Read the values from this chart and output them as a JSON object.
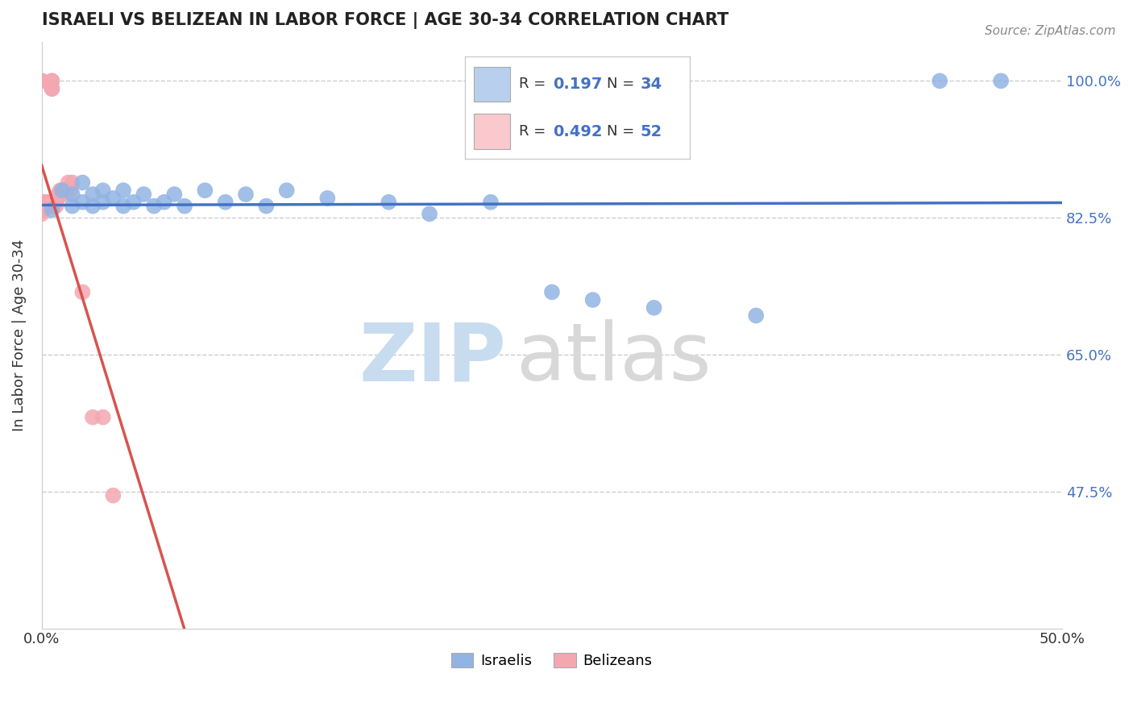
{
  "title": "ISRAELI VS BELIZEAN IN LABOR FORCE | AGE 30-34 CORRELATION CHART",
  "source": "Source: ZipAtlas.com",
  "ylabel": "In Labor Force | Age 30-34",
  "xlim": [
    0.0,
    0.5
  ],
  "ylim": [
    0.3,
    1.05
  ],
  "ytick_positions": [
    1.0,
    0.825,
    0.65,
    0.475
  ],
  "yticklabels": [
    "100.0%",
    "82.5%",
    "65.0%",
    "47.5%"
  ],
  "israeli_R": 0.197,
  "israeli_N": 34,
  "belizean_R": 0.492,
  "belizean_N": 52,
  "israeli_color": "#92b4e3",
  "belizean_color": "#f4a7b0",
  "israeli_line_color": "#4472c4",
  "belizean_line_color": "#d9534f",
  "legend_box_color_israeli": "#b8d0ee",
  "legend_box_color_belizean": "#f9c9ce",
  "israeli_x": [
    0.005,
    0.01,
    0.015,
    0.015,
    0.02,
    0.02,
    0.025,
    0.025,
    0.03,
    0.03,
    0.035,
    0.04,
    0.04,
    0.045,
    0.05,
    0.055,
    0.06,
    0.065,
    0.07,
    0.08,
    0.09,
    0.1,
    0.11,
    0.12,
    0.14,
    0.17,
    0.19,
    0.22,
    0.25,
    0.27,
    0.3,
    0.35,
    0.44,
    0.47
  ],
  "israeli_y": [
    0.835,
    0.86,
    0.84,
    0.855,
    0.845,
    0.87,
    0.84,
    0.855,
    0.845,
    0.86,
    0.85,
    0.84,
    0.86,
    0.845,
    0.855,
    0.84,
    0.845,
    0.855,
    0.84,
    0.86,
    0.845,
    0.855,
    0.84,
    0.86,
    0.85,
    0.845,
    0.83,
    0.845,
    0.73,
    0.72,
    0.71,
    0.7,
    1.0,
    1.0
  ],
  "belizean_x": [
    0.0,
    0.0,
    0.0,
    0.0,
    0.0,
    0.0,
    0.0,
    0.0,
    0.0,
    0.0,
    0.0,
    0.0,
    0.001,
    0.001,
    0.001,
    0.001,
    0.001,
    0.001,
    0.001,
    0.002,
    0.002,
    0.002,
    0.002,
    0.003,
    0.003,
    0.003,
    0.003,
    0.004,
    0.004,
    0.004,
    0.005,
    0.005,
    0.005,
    0.005,
    0.006,
    0.006,
    0.007,
    0.007,
    0.008,
    0.008,
    0.009,
    0.009,
    0.01,
    0.01,
    0.012,
    0.013,
    0.014,
    0.015,
    0.02,
    0.025,
    0.03,
    0.035
  ],
  "belizean_y": [
    0.84,
    0.835,
    0.84,
    0.845,
    0.835,
    0.84,
    0.83,
    0.84,
    0.845,
    0.835,
    1.0,
    1.0,
    0.845,
    0.84,
    0.835,
    0.84,
    0.84,
    0.845,
    0.835,
    0.84,
    0.845,
    0.84,
    0.84,
    0.845,
    0.84,
    0.84,
    0.845,
    0.84,
    0.845,
    0.84,
    0.99,
    0.99,
    1.0,
    1.0,
    0.845,
    0.84,
    0.845,
    0.84,
    0.85,
    0.855,
    0.855,
    0.86,
    0.855,
    0.86,
    0.86,
    0.87,
    0.86,
    0.87,
    0.73,
    0.57,
    0.57,
    0.47
  ],
  "watermark_zip_color": "#c8dcf0",
  "watermark_atlas_color": "#d8d8d8",
  "bg_color": "#ffffff",
  "grid_color": "#cccccc"
}
